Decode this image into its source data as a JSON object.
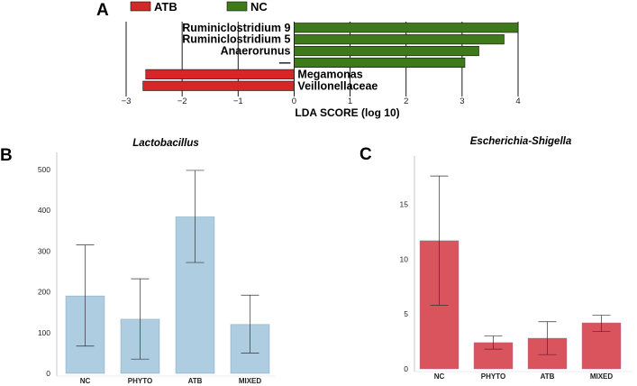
{
  "panels": {
    "a": "A",
    "b": "B",
    "c": "C"
  },
  "chart_data": [
    {
      "type": "bar",
      "orientation": "horizontal",
      "xlabel": "LDA SCORE (log 10)",
      "xlim": [
        -3,
        4
      ],
      "xticks": [
        "−3",
        "−2",
        "−1",
        "0",
        "1",
        "2",
        "3",
        "4"
      ],
      "grid": true,
      "legend_position": "top",
      "legend": [
        {
          "name": "ATB",
          "color": "#d62728"
        },
        {
          "name": "NC",
          "color": "#3f7a1a"
        }
      ],
      "bars": [
        {
          "label": "Ruminiclostridium 9",
          "value": 4.0,
          "group": "NC"
        },
        {
          "label": "Ruminiclostridium 5",
          "value": 3.75,
          "group": "NC"
        },
        {
          "label": "Anaerorunus",
          "value": 3.3,
          "group": "NC"
        },
        {
          "label": "—",
          "value": 3.05,
          "group": "NC"
        },
        {
          "label": "Megamonas",
          "value": -2.65,
          "group": "ATB"
        },
        {
          "label": "Veillonellaceae",
          "value": -2.7,
          "group": "ATB"
        }
      ]
    },
    {
      "type": "bar",
      "title": "Lactobacillus",
      "categories": [
        "NC",
        "PHYTO",
        "ATB",
        "MIXED"
      ],
      "values": [
        190,
        133,
        384,
        120
      ],
      "error_low": [
        67,
        35,
        272,
        50
      ],
      "error_high": [
        315,
        232,
        498,
        192
      ],
      "ylim": [
        0,
        520
      ],
      "yticks": [
        "0",
        "100",
        "200",
        "300",
        "400",
        "500"
      ],
      "color": "#aecde0"
    },
    {
      "type": "bar",
      "title": "Escherichia-Shigella",
      "categories": [
        "NC",
        "PHYTO",
        "ATB",
        "MIXED"
      ],
      "values": [
        11.7,
        2.4,
        2.8,
        4.2
      ],
      "error_low": [
        5.8,
        1.8,
        1.3,
        3.4
      ],
      "error_high": [
        17.6,
        3.0,
        4.3,
        4.9
      ],
      "ylim": [
        0,
        18.6
      ],
      "yticks": [
        "0",
        "5",
        "10",
        "15"
      ],
      "color": "#d9545d"
    }
  ]
}
